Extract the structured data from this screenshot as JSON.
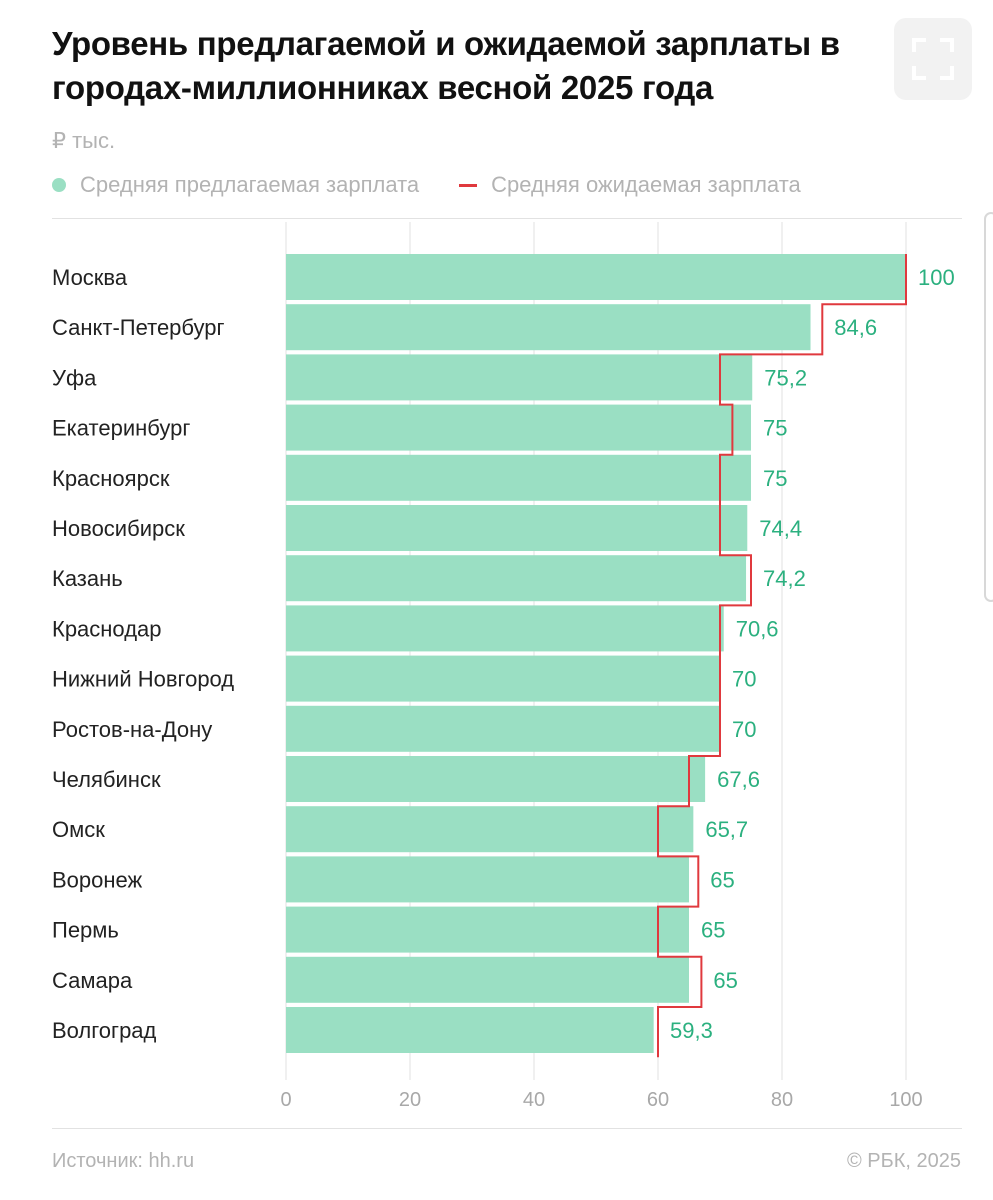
{
  "header": {
    "title": "Уровень предлагаемой и ожидаемой зарплаты в городах-миллионниках весной 2025 года",
    "units": "₽ тыс."
  },
  "legend": {
    "offered_label": "Средняя предлагаемая зарплата",
    "expected_label": "Средняя ожидаемая зарплата"
  },
  "footer": {
    "source": "Источник: hh.ru",
    "copyright": "© РБК, 2025"
  },
  "icons": {
    "expand": "expand-icon"
  },
  "colors": {
    "bar": "#9adfc3",
    "expected_line": "#e0393e",
    "value_label": "#2bb07f",
    "grid": "#e2e2e2",
    "axis_text": "#a8a8a8"
  },
  "chart_data": {
    "type": "bar",
    "orientation": "horizontal",
    "title": "Уровень предлагаемой и ожидаемой зарплаты в городах-миллионниках весной 2025 года",
    "ylabel": "",
    "xlabel": "",
    "xlim": [
      0,
      100
    ],
    "xticks": [
      0,
      20,
      40,
      60,
      80,
      100
    ],
    "grid": true,
    "legend_position": "top-left",
    "categories": [
      "Москва",
      "Санкт-Петербург",
      "Уфа",
      "Екатеринбург",
      "Красноярск",
      "Новосибирск",
      "Казань",
      "Краснодар",
      "Нижний Новгород",
      "Ростов-на-Дону",
      "Челябинск",
      "Омск",
      "Воронеж",
      "Пермь",
      "Самара",
      "Волгоград"
    ],
    "value_labels": [
      "100",
      "84,6",
      "75,2",
      "75",
      "75",
      "74,4",
      "74,2",
      "70,6",
      "70",
      "70",
      "67,6",
      "65,7",
      "65",
      "65",
      "65",
      "59,3"
    ],
    "series": [
      {
        "name": "Средняя предлагаемая зарплата",
        "kind": "bar",
        "values": [
          100,
          84.6,
          75.2,
          75,
          75,
          74.4,
          74.2,
          70.6,
          70,
          70,
          67.6,
          65.7,
          65,
          65,
          65,
          59.3
        ]
      },
      {
        "name": "Средняя ожидаемая зарплата",
        "kind": "step-line",
        "values": [
          100,
          86.5,
          70,
          72,
          70,
          70,
          75,
          70,
          70,
          70,
          65,
          60,
          66.5,
          60,
          67,
          60
        ]
      }
    ]
  }
}
